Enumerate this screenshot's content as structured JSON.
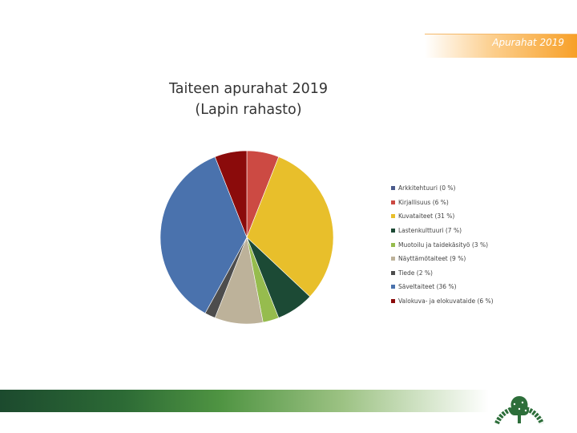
{
  "header": {
    "title": "Apurahat 2019"
  },
  "chart_data": {
    "type": "pie",
    "title": "Taiteen apurahat 2019 (Lapin rahasto)",
    "title_lines": [
      "Taiteen apurahat 2019",
      "(Lapin rahasto)"
    ],
    "legend_position": "right",
    "slices": [
      {
        "label": "Arkkitehtuuri (0 %)",
        "value": 0,
        "color": "#4a5a8c"
      },
      {
        "label": "Kirjallisuus (6 %)",
        "value": 6,
        "color": "#cc4a43"
      },
      {
        "label": "Kuvataiteet (31 %)",
        "value": 31,
        "color": "#e8bf2b"
      },
      {
        "label": "Lastenkulttuuri (7 %)",
        "value": 7,
        "color": "#1c4a35"
      },
      {
        "label": "Muotoilu ja taidekäsityö (3 %)",
        "value": 3,
        "color": "#96bc4e"
      },
      {
        "label": "Näyttämötaiteet (9 %)",
        "value": 9,
        "color": "#bdb29a"
      },
      {
        "label": "Tiede (2 %)",
        "value": 2,
        "color": "#4d4d4d"
      },
      {
        "label": "Säveltaiteet (36 %)",
        "value": 36,
        "color": "#4a72ad"
      },
      {
        "label": "Valokuva- ja elokuvataide (6 %)",
        "value": 6,
        "color": "#8b0b0b"
      }
    ]
  }
}
